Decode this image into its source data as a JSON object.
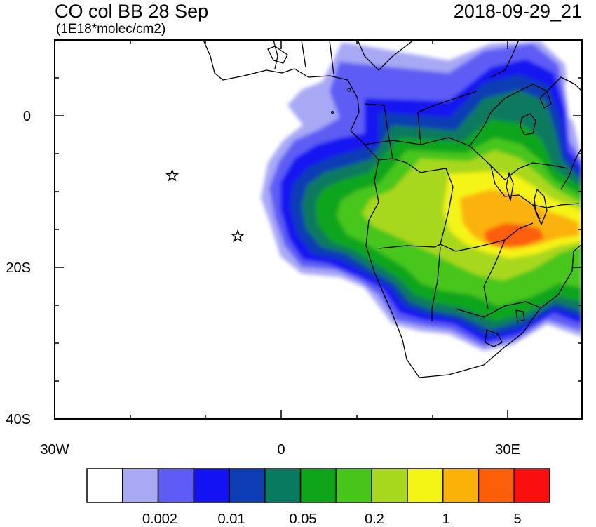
{
  "title": "CO col BB 28 Sep",
  "units": "(1E18*molec/cm2)",
  "valid_time": "2018-09-29_21",
  "axes": {
    "y_ticks": [
      {
        "label": "0",
        "value": 0
      },
      {
        "label": "20S",
        "value": -20
      },
      {
        "label": "40S",
        "value": -40
      }
    ],
    "x_ticks": [
      {
        "label": "30W",
        "value": -30
      },
      {
        "label": "0",
        "value": 0
      },
      {
        "label": "30E",
        "value": 30
      }
    ]
  },
  "colorbar": {
    "colors": [
      "#ffffff",
      "#a8a8f5",
      "#5d5df5",
      "#1212f2",
      "#0d3cb3",
      "#077a5f",
      "#0ea51b",
      "#47c61a",
      "#a8d81c",
      "#f4f415",
      "#fbb208",
      "#fd5e08",
      "#fb0e0e"
    ],
    "labels": [
      "0.002",
      "0.01",
      "0.05",
      "0.2",
      "1",
      "5"
    ]
  },
  "markers": [
    {
      "name": "star-marker",
      "lon": -14.4,
      "lat": -7.9
    },
    {
      "name": "star-marker",
      "lon": -5.7,
      "lat": -15.9
    }
  ]
}
